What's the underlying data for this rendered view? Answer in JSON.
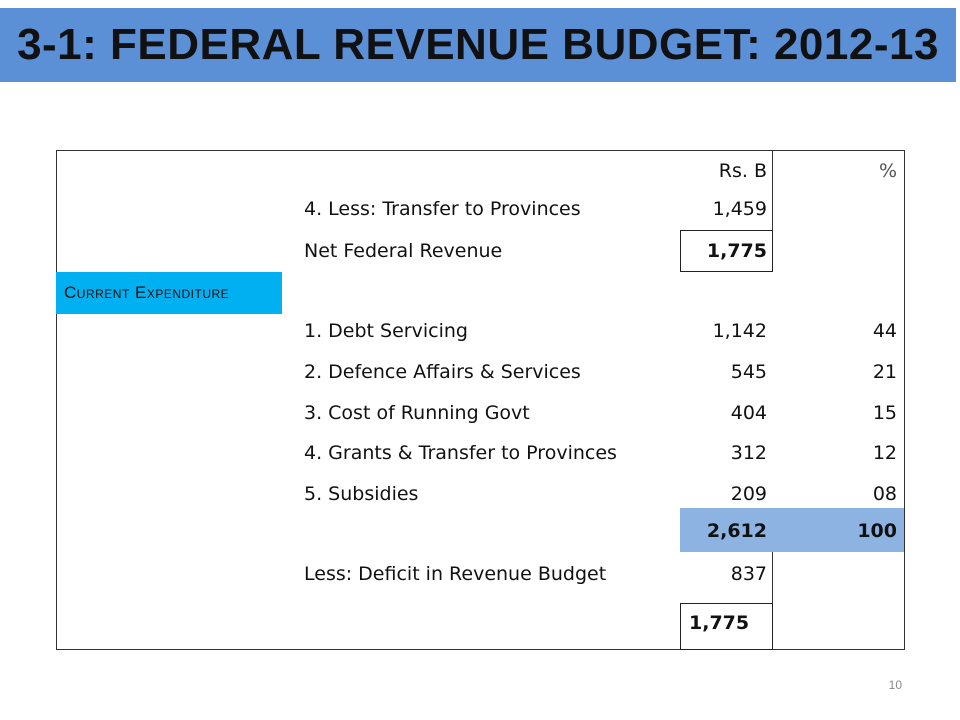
{
  "title": "3-1: FEDERAL REVENUE BUDGET: 2012-13",
  "header": {
    "rs": "Rs. B",
    "pct": "%"
  },
  "section_label": "Current Expenditure",
  "rows": [
    {
      "label": "4. Less: Transfer to Provinces",
      "rs": "1,459",
      "pct": ""
    },
    {
      "label": "Net Federal Revenue",
      "rs": "1,775",
      "pct": ""
    },
    {
      "label": "1. Debt Servicing",
      "rs": "1,142",
      "pct": "44"
    },
    {
      "label": "2. Defence Affairs & Services",
      "rs": "545",
      "pct": "21"
    },
    {
      "label": "3. Cost of Running Govt",
      "rs": "404",
      "pct": "15"
    },
    {
      "label": "4. Grants & Transfer to Provinces",
      "rs": "312",
      "pct": "12"
    },
    {
      "label": "5. Subsidies",
      "rs": "209",
      "pct": "08"
    },
    {
      "label": "",
      "rs": "2,612",
      "pct": "100"
    },
    {
      "label": "Less: Deficit in Revenue Budget",
      "rs": "837",
      "pct": ""
    },
    {
      "label": "",
      "rs": "1,775",
      "pct": ""
    }
  ],
  "page_number": "10",
  "colors": {
    "banner": "#5b8fd6",
    "section": "#00b0f0",
    "total_band": "#8db3e2"
  }
}
